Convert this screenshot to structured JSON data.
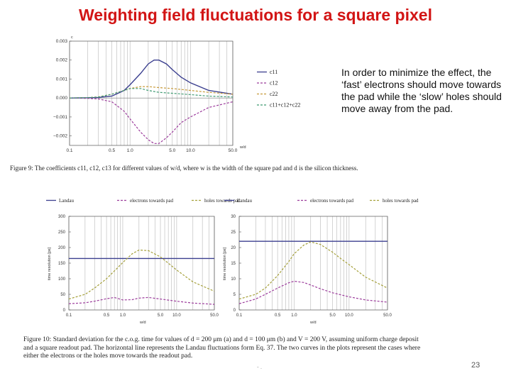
{
  "slide": {
    "title": "Weighting field fluctuations for a square pixel",
    "note": "In order to minimize the effect, the ‘fast’ electrons should move towards the pad while the ‘slow’ holes should move away from the pad.",
    "page_number": "23",
    "footer_marks": "- ."
  },
  "figure9": {
    "caption": "Figure 9: The coefficients c11, c12, c13 for different values of w/d, where w is the width of the square pad and d is the silicon thickness."
  },
  "figure10": {
    "caption": "Figure 10: Standard deviation for the c.o.g. time for values of d = 200 μm (a) and d = 100 μm (b) and V = 200 V, assuming uniform charge deposit and a square readout pad. The horizontal line represents the Landau fluctuations form Eq. 37. The two curves in the plots represent the cases where either the electrons or the holes move towards the readout pad."
  },
  "colors": {
    "title": "#d21515",
    "c11": "#3b3f8f",
    "c12": "#9c3c9c",
    "c22": "#c79a3a",
    "sum": "#3f9a72",
    "landau": "#3b3f8f",
    "electrons": "#9c3c9c",
    "holes": "#a5a03a"
  },
  "chart_data": [
    {
      "type": "line",
      "xscale": "log",
      "xlabel": "w/d",
      "ylabel": "c",
      "xlim": [
        0.1,
        50
      ],
      "ylim": [
        -0.0025,
        0.003
      ],
      "x_ticks": [
        "0.1",
        "0.5",
        "1.0",
        "5.0",
        "10.0",
        "50.0"
      ],
      "y_ticks": [
        "0.003",
        "0.002",
        "0.001",
        "0.000",
        "−0.001",
        "−0.002"
      ],
      "grid": true,
      "legend_position": "right",
      "series": [
        {
          "name": "c11",
          "color": "#3b3f8f",
          "dash": "solid",
          "x": [
            0.1,
            0.2,
            0.3,
            0.5,
            0.8,
            1.0,
            1.5,
            2.0,
            2.5,
            3.0,
            4.0,
            5.0,
            7.0,
            10.0,
            20.0,
            50.0
          ],
          "y": [
            0.0,
            1e-05,
            3e-05,
            0.0001,
            0.0004,
            0.0007,
            0.0013,
            0.0018,
            0.002,
            0.002,
            0.0018,
            0.0015,
            0.0011,
            0.0008,
            0.0004,
            0.0002
          ]
        },
        {
          "name": "c12",
          "color": "#9c3c9c",
          "dash": "dashed",
          "x": [
            0.1,
            0.2,
            0.3,
            0.5,
            0.8,
            1.0,
            1.5,
            2.0,
            2.5,
            3.0,
            4.0,
            5.0,
            7.0,
            10.0,
            20.0,
            50.0
          ],
          "y": [
            0.0,
            -2e-05,
            -5e-05,
            -0.0002,
            -0.0007,
            -0.0011,
            -0.0018,
            -0.0022,
            -0.0024,
            -0.0024,
            -0.0021,
            -0.0018,
            -0.0013,
            -0.001,
            -0.0005,
            -0.0002
          ]
        },
        {
          "name": "c22",
          "color": "#c79a3a",
          "dash": "dashed",
          "x": [
            0.1,
            0.2,
            0.3,
            0.5,
            0.8,
            1.0,
            1.5,
            2.0,
            3.0,
            5.0,
            10.0,
            20.0,
            50.0
          ],
          "y": [
            0.0,
            2e-05,
            6e-05,
            0.0002,
            0.0004,
            0.0005,
            0.0006,
            0.0006,
            0.00055,
            0.0005,
            0.0004,
            0.0003,
            0.0002
          ]
        },
        {
          "name": "c11+c12+c22",
          "color": "#3f9a72",
          "dash": "dashed",
          "x": [
            0.1,
            0.2,
            0.3,
            0.5,
            0.8,
            1.0,
            1.5,
            2.0,
            3.0,
            5.0,
            10.0,
            20.0,
            50.0
          ],
          "y": [
            0.0,
            2e-05,
            5e-05,
            0.0002,
            0.0004,
            0.0005,
            0.0005,
            0.0004,
            0.0003,
            0.00025,
            0.00018,
            0.0001,
            5e-05
          ]
        }
      ]
    },
    {
      "type": "line",
      "xscale": "log",
      "xlabel": "w/d",
      "ylabel": "time resolution [ps]",
      "xlim": [
        0.1,
        50
      ],
      "ylim": [
        0,
        300
      ],
      "x_ticks": [
        "0.1",
        "0.5",
        "1.0",
        "5.0",
        "10.0",
        "50.0"
      ],
      "y_ticks": [
        "0",
        "50",
        "100",
        "150",
        "200",
        "250",
        "300"
      ],
      "grid": true,
      "legend_position": "top",
      "series": [
        {
          "name": "Landau",
          "color": "#3b3f8f",
          "dash": "solid",
          "x": [
            0.1,
            50.0
          ],
          "y": [
            165,
            165
          ]
        },
        {
          "name": "electrons towards pad",
          "color": "#9c3c9c",
          "dash": "dashed",
          "x": [
            0.1,
            0.2,
            0.3,
            0.5,
            0.7,
            1.0,
            1.5,
            2.0,
            3.0,
            5.0,
            10.0,
            20.0,
            50.0
          ],
          "y": [
            20,
            23,
            28,
            36,
            40,
            32,
            33,
            38,
            40,
            35,
            28,
            22,
            18
          ]
        },
        {
          "name": "holes towards pad",
          "color": "#a5a03a",
          "dash": "dashed",
          "x": [
            0.1,
            0.2,
            0.3,
            0.5,
            0.8,
            1.0,
            1.5,
            2.0,
            3.0,
            5.0,
            7.0,
            10.0,
            20.0,
            50.0
          ],
          "y": [
            35,
            50,
            70,
            100,
            135,
            152,
            180,
            192,
            190,
            170,
            150,
            128,
            90,
            60
          ]
        }
      ]
    },
    {
      "type": "line",
      "xscale": "log",
      "xlabel": "w/d",
      "ylabel": "time resolution [ps]",
      "xlim": [
        0.1,
        50
      ],
      "ylim": [
        0,
        30
      ],
      "x_ticks": [
        "0.1",
        "0.5",
        "1.0",
        "5.0",
        "10.0",
        "50.0"
      ],
      "y_ticks": [
        "0",
        "5",
        "10",
        "15",
        "20",
        "25",
        "30"
      ],
      "grid": true,
      "legend_position": "top",
      "series": [
        {
          "name": "Landau",
          "color": "#3b3f8f",
          "dash": "solid",
          "x": [
            0.1,
            50.0
          ],
          "y": [
            22,
            22
          ]
        },
        {
          "name": "electrons towards pad",
          "color": "#9c3c9c",
          "dash": "dashed",
          "x": [
            0.1,
            0.2,
            0.3,
            0.5,
            0.8,
            1.0,
            1.5,
            2.0,
            3.0,
            5.0,
            10.0,
            20.0,
            50.0
          ],
          "y": [
            2,
            3.5,
            5,
            7,
            8.7,
            9.2,
            8.8,
            8,
            6.8,
            5.5,
            4.2,
            3.2,
            2.5
          ]
        },
        {
          "name": "holes towards pad",
          "color": "#a5a03a",
          "dash": "dashed",
          "x": [
            0.1,
            0.2,
            0.3,
            0.5,
            0.8,
            1.0,
            1.5,
            2.0,
            3.0,
            5.0,
            7.0,
            10.0,
            20.0,
            50.0
          ],
          "y": [
            3.5,
            5,
            7,
            11,
            15.5,
            18,
            20.8,
            21.8,
            21,
            18.5,
            16.5,
            14.5,
            10.5,
            7
          ]
        }
      ]
    }
  ]
}
